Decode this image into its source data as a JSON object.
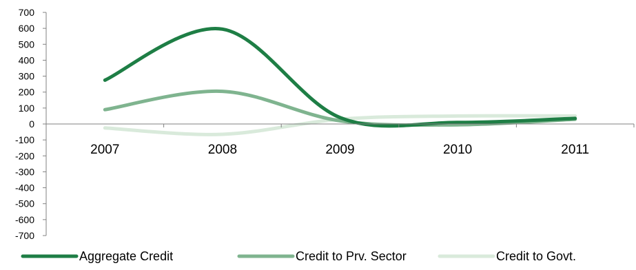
{
  "chart_data": {
    "type": "line",
    "title": "",
    "xlabel": "",
    "ylabel": "",
    "categories": [
      "2007",
      "2008",
      "2009",
      "2010",
      "2011"
    ],
    "ylim": [
      -700,
      700
    ],
    "yticks": [
      700,
      600,
      500,
      400,
      300,
      200,
      100,
      0,
      -100,
      -200,
      -300,
      -400,
      -500,
      -600,
      -700
    ],
    "smooth": true,
    "grid": false,
    "legend_position": "bottom",
    "series": [
      {
        "name": "Aggregate Credit",
        "values": [
          275,
          595,
          40,
          10,
          35
        ],
        "color": "#1e7e45"
      },
      {
        "name": "Credit to Prv. Sector",
        "values": [
          90,
          205,
          20,
          -5,
          30
        ],
        "color": "#7fb48f"
      },
      {
        "name": "Credit to Govt.",
        "values": [
          -25,
          -65,
          30,
          50,
          50
        ],
        "color": "#d9eadb"
      }
    ]
  }
}
